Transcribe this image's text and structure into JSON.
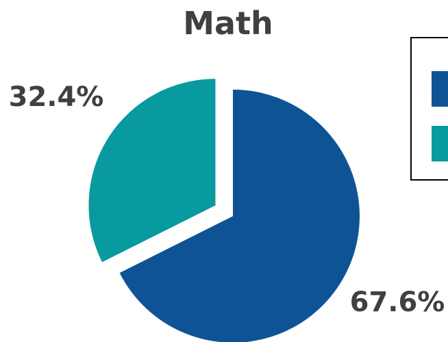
{
  "chart_data": {
    "type": "pie",
    "title": "Math",
    "slices": [
      {
        "value": 67.6,
        "label": "67.6%",
        "color": "#0e5395"
      },
      {
        "value": 32.4,
        "label": "32.4%",
        "color": "#099aa0"
      }
    ],
    "exploded_slice": 1,
    "legend": {
      "placement": "top-right",
      "entries": [
        {
          "name": "",
          "color": "#0e5395"
        },
        {
          "name": "",
          "color": "#099aa0"
        }
      ]
    }
  }
}
